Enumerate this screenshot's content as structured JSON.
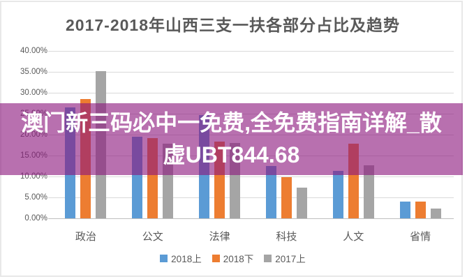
{
  "banner": {
    "line1": "澳门新三码必中一免费,全免费指南详解_散",
    "line2": "虚UBT844.68",
    "bg_color_rgba": "rgba(141, 24, 126, 0.62)",
    "text_color": "#ffffff"
  },
  "chart_data": {
    "type": "bar",
    "title": "2017-2018年山西三支一扶各部分占比及趋势",
    "categories": [
      "政治",
      "公文",
      "法律",
      "科技",
      "人文",
      "省情"
    ],
    "series": [
      {
        "name": "2018上",
        "color": "#5B9BD5",
        "values": [
          26.5,
          19.5,
          24.7,
          12.5,
          11.4,
          4.0
        ]
      },
      {
        "name": "2018下",
        "color": "#ED7D31",
        "values": [
          28.5,
          19.2,
          18.3,
          9.8,
          17.9,
          4.0
        ]
      },
      {
        "name": "2017上",
        "color": "#A5A5A5",
        "values": [
          35.2,
          17.8,
          18.0,
          7.3,
          12.6,
          2.3
        ]
      }
    ],
    "xlabel": "",
    "ylabel": "",
    "ylim": [
      0,
      40
    ],
    "ytick_step": 5,
    "ytick_labels": [
      "0.00%",
      "5.00%",
      "10.00%",
      "15.00%",
      "20.00%",
      "25.00%",
      "30.00%",
      "35.00%",
      "40.00%"
    ],
    "grid": true,
    "legend_position": "bottom",
    "colors": {
      "title_text": "#595959",
      "axis_text": "#595959",
      "gridline": "#d9d9d9",
      "axis_line": "#bfbfbf",
      "card_border": "#e8e8e8"
    }
  }
}
